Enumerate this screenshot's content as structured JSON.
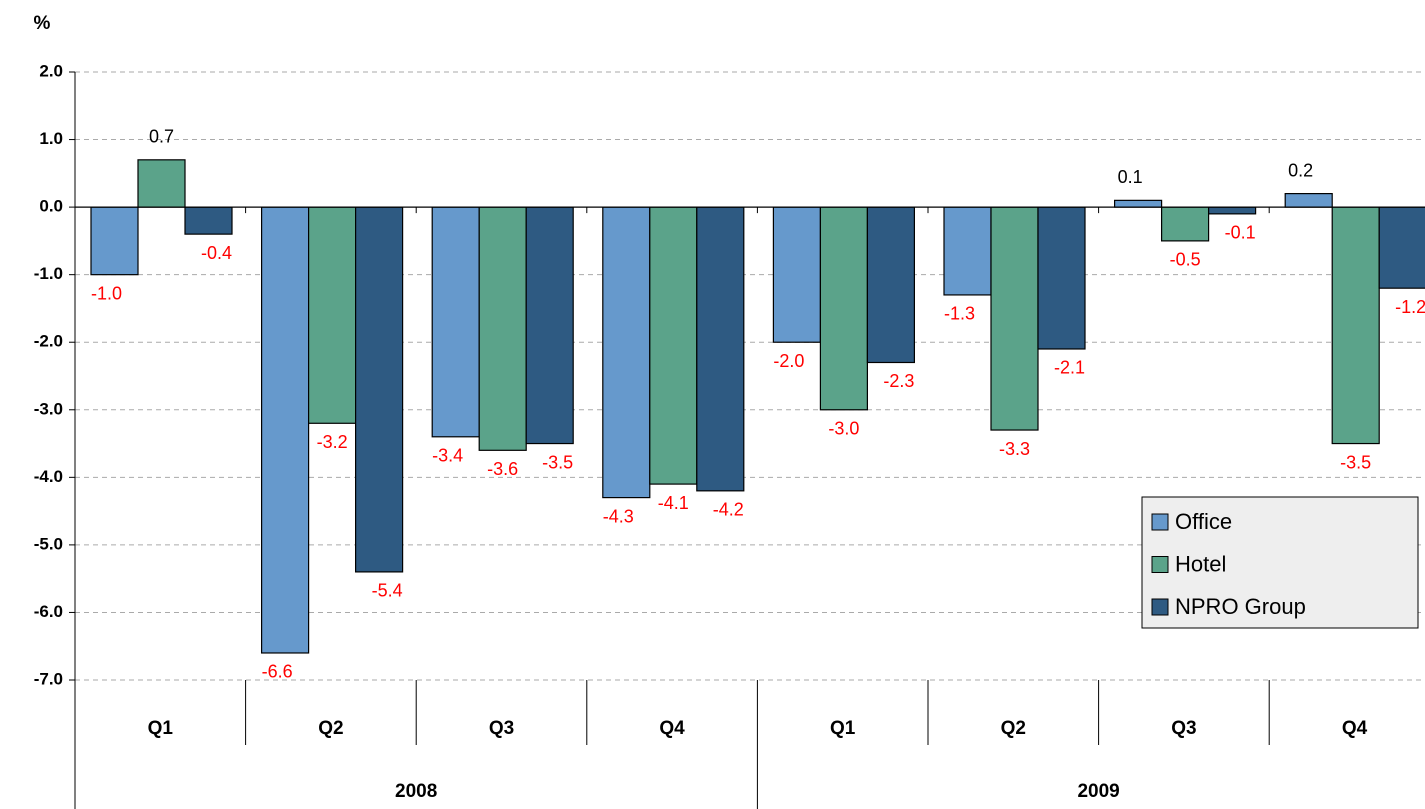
{
  "chart_data": {
    "type": "bar",
    "ylabel": "%",
    "categories": [
      "Q1",
      "Q2",
      "Q3",
      "Q4",
      "Q1",
      "Q2",
      "Q3",
      "Q4"
    ],
    "category_groups": [
      "2008",
      "2009"
    ],
    "series": [
      {
        "name": "Office",
        "color": "#6699cc",
        "values": [
          -1.0,
          -6.6,
          -3.4,
          -4.3,
          -2.0,
          -1.3,
          0.1,
          0.2
        ],
        "value_labels": [
          "-1.0",
          "-6.6",
          "-3.4",
          "-4.3",
          "-2.0",
          "-1.3",
          "0.1",
          "0.2"
        ]
      },
      {
        "name": "Hotel",
        "color": "#5ba38a",
        "values": [
          0.7,
          -3.2,
          -3.6,
          -4.1,
          -3.0,
          -3.3,
          -0.5,
          -3.5
        ],
        "value_labels": [
          "0.7",
          "-3.2",
          "-3.6",
          "-4.1",
          "-3.0",
          "-3.3",
          "-0.5",
          "-3.5"
        ]
      },
      {
        "name": "NPRO Group",
        "color": "#2e5a82",
        "values": [
          -0.4,
          -5.4,
          -3.5,
          -4.2,
          -2.3,
          -2.1,
          -0.1,
          -1.2
        ],
        "value_labels": [
          "-0.4",
          "-5.4",
          "-3.5",
          "-4.2",
          "-2.3",
          "-2.1",
          "-0.1",
          "-1.2"
        ]
      }
    ],
    "ylim": [
      -7,
      2
    ],
    "yticks": [
      {
        "value": 2,
        "label": "2.0"
      },
      {
        "value": 1,
        "label": "1.0"
      },
      {
        "value": 0,
        "label": "0.0"
      },
      {
        "value": -1,
        "label": "-1.0"
      },
      {
        "value": -2,
        "label": "-2.0"
      },
      {
        "value": -3,
        "label": "-3.0"
      },
      {
        "value": -4,
        "label": "-4.0"
      },
      {
        "value": -5,
        "label": "-5.0"
      },
      {
        "value": -6,
        "label": "-6.0"
      },
      {
        "value": -7,
        "label": "-7.0"
      }
    ],
    "grid": true,
    "legend": "lower right"
  }
}
